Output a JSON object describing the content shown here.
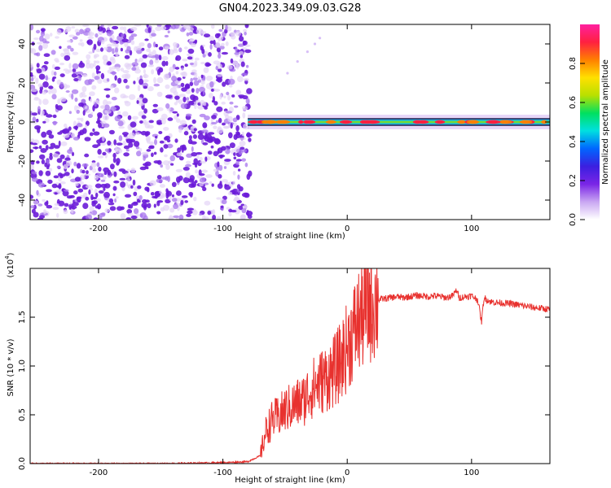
{
  "title": "GN04.2023.349.09.03.G28",
  "colors": {
    "snr_line": "#e8312e",
    "scatter_low": "#e4d4f7",
    "scatter_high": "#6a1bd8",
    "colormap": [
      "#ffffff",
      "#c9a6f2",
      "#7a25e6",
      "#3b1fe0",
      "#0066ff",
      "#00e0e0",
      "#00e060",
      "#b8e000",
      "#ffe000",
      "#ff8000",
      "#ff2040",
      "#ff20a0"
    ]
  },
  "colorbar": {
    "label": "Normalized spectral amplitude",
    "ticks": [
      "0.0",
      "0.2",
      "0.4",
      "0.6",
      "0.8"
    ]
  },
  "chart_data": [
    {
      "type": "heatmap",
      "name": "spectrogram",
      "xlabel": "Height of straight line (km)",
      "ylabel": "Frequency (Hz)",
      "xlim": [
        -255,
        163
      ],
      "ylim": [
        -50,
        50
      ],
      "xticks": [
        "-200",
        "-100",
        "0",
        "100"
      ],
      "xtick_values": [
        -200,
        -100,
        0,
        100
      ],
      "yticks": [
        "40",
        "20",
        "0",
        "-20",
        "-40"
      ],
      "ytick_values": [
        40,
        20,
        0,
        -20,
        -40
      ],
      "noise_region_x": [
        -255,
        -78
      ],
      "signal_band": {
        "x_start": -80,
        "x_end": 163,
        "frequency_hz": 0
      },
      "weak_trace": [
        [
          -48,
          25
        ],
        [
          -40,
          31
        ],
        [
          -32,
          36
        ],
        [
          -26,
          40
        ],
        [
          -22,
          43
        ]
      ],
      "grid": false
    },
    {
      "type": "line",
      "name": "snr",
      "xlabel": "Height of straight line (km)",
      "ylabel": "SNR (10 * v/v)",
      "scale_note": "(x10^4)",
      "xlim": [
        -255,
        163
      ],
      "ylim": [
        0,
        2
      ],
      "xticks": [
        "-200",
        "-100",
        "0",
        "100"
      ],
      "xtick_values": [
        -200,
        -100,
        0,
        100
      ],
      "yticks": [
        "0.0",
        "0.5",
        "1.0",
        "1.5"
      ],
      "ytick_values": [
        0,
        0.5,
        1.0,
        1.5
      ],
      "y_multiplier_label": "(x10",
      "y_multiplier_exp": "4",
      "y_multiplier_close": ")",
      "x": [
        -255,
        -200,
        -150,
        -100,
        -80,
        -70,
        -65,
        -60,
        -55,
        -50,
        -45,
        -40,
        -35,
        -30,
        -25,
        -20,
        -15,
        -10,
        -5,
        0,
        5,
        10,
        15,
        20,
        25,
        30,
        35,
        40,
        45,
        50,
        55,
        60,
        65,
        70,
        75,
        80,
        85,
        88,
        90,
        95,
        100,
        105,
        108,
        110,
        115,
        120,
        130,
        140,
        150,
        163
      ],
      "y": [
        0.0,
        0.0,
        0.0,
        0.01,
        0.02,
        0.08,
        0.35,
        0.45,
        0.48,
        0.55,
        0.58,
        0.62,
        0.65,
        0.75,
        0.8,
        0.85,
        0.9,
        0.95,
        1.05,
        1.2,
        1.35,
        1.48,
        1.58,
        1.65,
        1.68,
        1.69,
        1.7,
        1.71,
        1.7,
        1.71,
        1.72,
        1.72,
        1.71,
        1.72,
        1.71,
        1.7,
        1.72,
        1.78,
        1.7,
        1.71,
        1.72,
        1.68,
        1.45,
        1.7,
        1.66,
        1.65,
        1.64,
        1.62,
        1.6,
        1.58
      ],
      "grid": false
    }
  ]
}
